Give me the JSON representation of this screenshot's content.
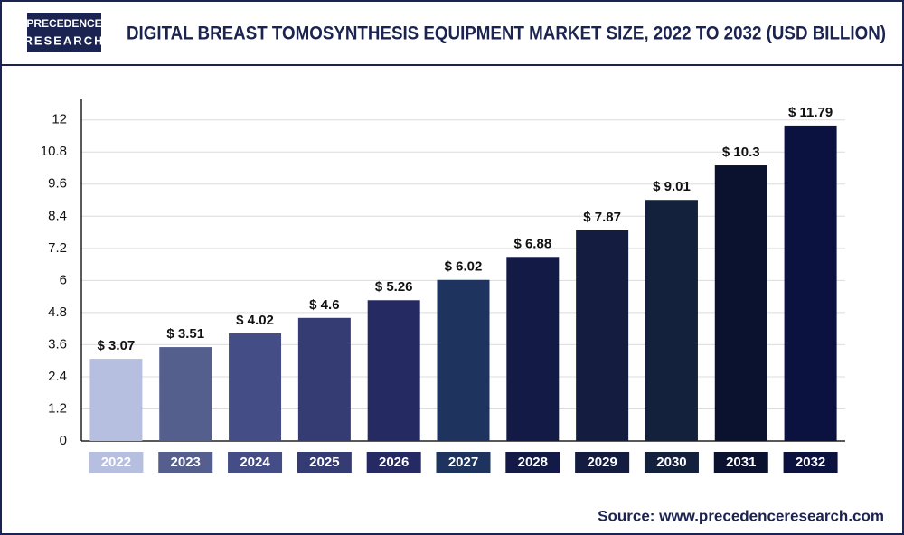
{
  "chart_data": {
    "type": "bar",
    "title": "DIGITAL BREAST TOMOSYNTHESIS EQUIPMENT MARKET SIZE, 2022 TO 2032 (USD BILLION)",
    "logo_top": "PRECEDENCE",
    "logo_bottom": "RESEARCH",
    "source": "Source: www.precedenceresearch.com",
    "categories": [
      "2022",
      "2023",
      "2024",
      "2025",
      "2026",
      "2027",
      "2028",
      "2029",
      "2030",
      "2031",
      "2032"
    ],
    "values": [
      3.07,
      3.51,
      4.02,
      4.6,
      5.26,
      6.02,
      6.88,
      7.87,
      9.01,
      10.3,
      11.79
    ],
    "value_labels": [
      "$ 3.07",
      "$ 3.51",
      "$ 4.02",
      "$ 4.6",
      "$ 5.26",
      "$ 6.02",
      "$ 6.88",
      "$ 7.87",
      "$ 9.01",
      "$ 10.3",
      "$ 11.79"
    ],
    "colors": [
      "#b6bfe0",
      "#555f8e",
      "#444d86",
      "#343c73",
      "#252b62",
      "#1e335e",
      "#121a45",
      "#141c40",
      "#14213d",
      "#0b1230",
      "#0c1240"
    ],
    "ylim": [
      0,
      12.8
    ],
    "yticks": [
      0,
      1.2,
      2.4,
      3.6,
      4.8,
      6,
      7.2,
      8.4,
      9.6,
      10.8,
      12
    ],
    "grid": true
  }
}
